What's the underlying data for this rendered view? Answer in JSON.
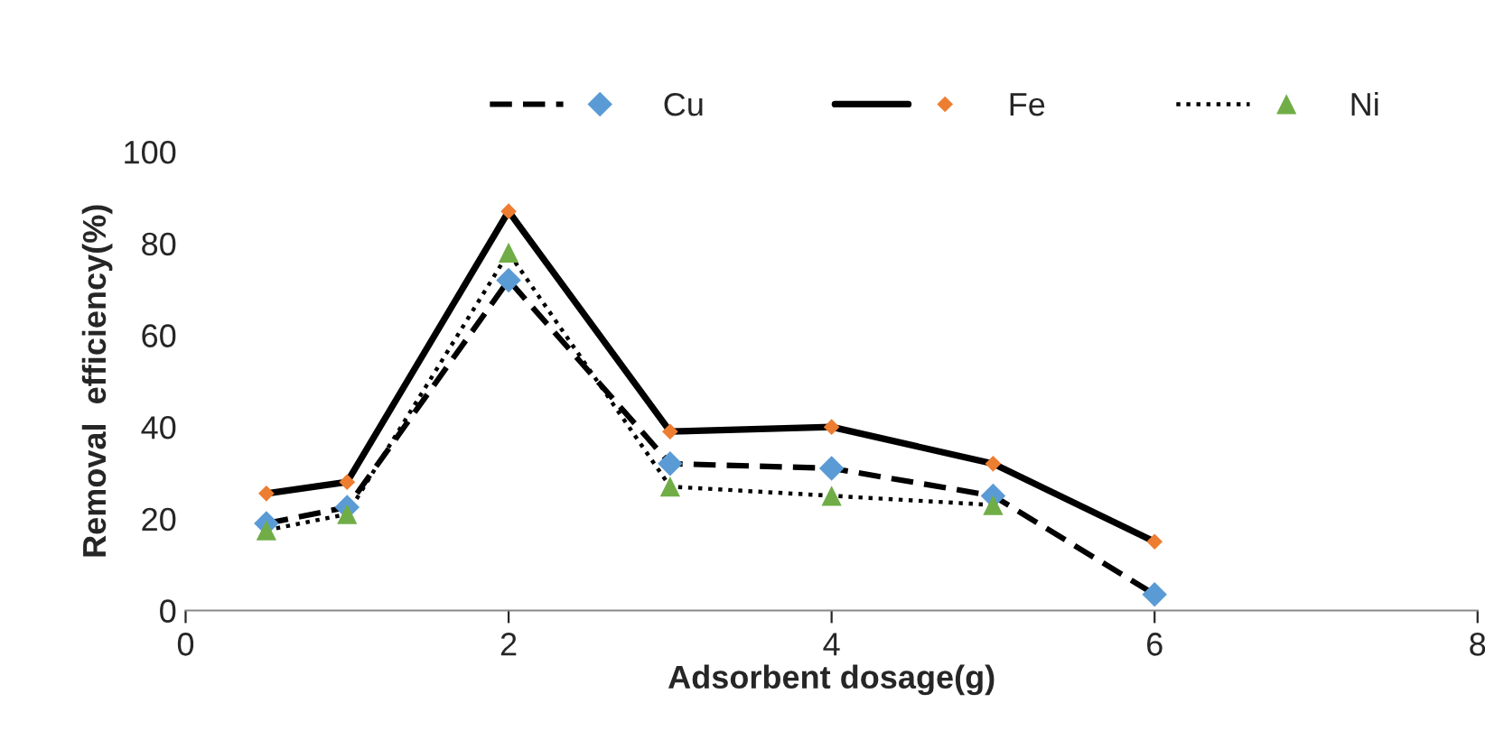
{
  "chart_data": {
    "type": "line",
    "xlabel": "Adsorbent dosage(g)",
    "ylabel": "Removal  efficiency(%)",
    "x": [
      0.5,
      1,
      2,
      3,
      4,
      5,
      6
    ],
    "series": [
      {
        "name": "Cu",
        "color": "#5b9bd5",
        "marker": "diamond",
        "line_style": "dashed",
        "values": [
          19,
          22.5,
          72,
          32,
          31,
          25,
          3.5
        ]
      },
      {
        "name": "Fe",
        "color": "#ed7d31",
        "marker": "diamond",
        "line_style": "solid",
        "values": [
          25.5,
          28,
          87,
          39,
          40,
          32,
          15
        ]
      },
      {
        "name": "Ni",
        "color": "#70ad47",
        "marker": "triangle",
        "line_style": "dotted",
        "values": [
          17.5,
          21,
          78,
          27,
          25,
          23,
          null
        ]
      }
    ],
    "xlim": [
      0,
      8
    ],
    "xticks": [
      0,
      2,
      4,
      6,
      8
    ],
    "ylim": [
      0,
      100
    ],
    "yticks": [
      0,
      20,
      40,
      60,
      80,
      100
    ],
    "grid": false,
    "legend": "top"
  }
}
